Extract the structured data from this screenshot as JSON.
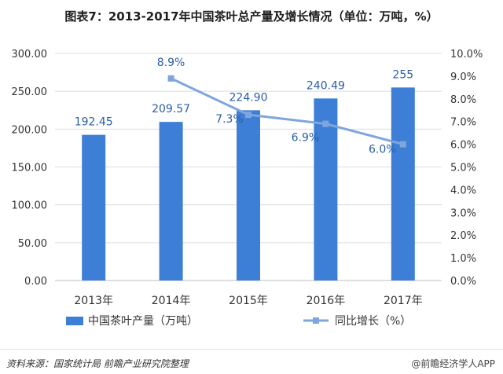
{
  "chart_data": {
    "type": "bar",
    "title": "图表7：2013-2017年中国茶叶总产量及增长情况（单位：万吨，%）",
    "categories": [
      "2013年",
      "2014年",
      "2015年",
      "2016年",
      "2017年"
    ],
    "series": [
      {
        "name": "中国茶叶产量（万吨）",
        "type": "bar",
        "axis": "left",
        "values": [
          192.45,
          209.57,
          224.9,
          240.49,
          255
        ],
        "labels": [
          "192.45",
          "209.57",
          "224.90",
          "240.49",
          "255"
        ]
      },
      {
        "name": "同比增长（%）",
        "type": "line",
        "axis": "right",
        "values": [
          null,
          8.9,
          7.3,
          6.9,
          6.0
        ],
        "labels": [
          null,
          "8.9%",
          "7.3%",
          "6.9%",
          "6.0%"
        ]
      }
    ],
    "ylim_left": [
      0,
      300
    ],
    "yticks_left": [
      "0.00",
      "50.00",
      "100.00",
      "150.00",
      "200.00",
      "250.00",
      "300.00"
    ],
    "ylim_right": [
      0,
      10
    ],
    "yticks_right": [
      "0.0%",
      "1.0%",
      "2.0%",
      "3.0%",
      "4.0%",
      "5.0%",
      "6.0%",
      "7.0%",
      "8.0%",
      "9.0%",
      "10.0%"
    ],
    "grid": true,
    "legend_position": "bottom",
    "colors": {
      "bar": "#3d7fd6",
      "line": "#7ea6dd",
      "marker": "#7ea6dd"
    }
  },
  "footer": {
    "source": "资料来源：国家统计局 前瞻产业研究院整理",
    "brand": "@前瞻经济学人APP"
  }
}
